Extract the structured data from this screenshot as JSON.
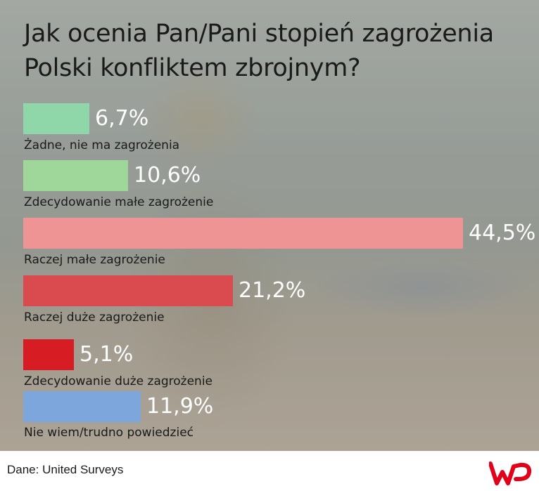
{
  "title": "Jak ocenia Pan/Pani stopień zagrożenia Polski konfliktem zbrojnym?",
  "source": "Dane: United Surveys",
  "logo": {
    "name": "wp-logo",
    "text": "WP",
    "color": "#e2001a"
  },
  "chart_data": {
    "type": "bar",
    "orientation": "horizontal",
    "title": "Jak ocenia Pan/Pani stopień zagrożenia Polski konfliktem zbrojnym?",
    "unit": "%",
    "categories": [
      "Żadne, nie ma zagrożenia",
      "Zdecydowanie małe zagrożenie",
      "Raczej małe zagrożenie",
      "Raczej duże zagrożenie",
      "Zdecydowanie duże zagrożenie",
      "Nie wiem/trudno powiedzieć"
    ],
    "values": [
      6.7,
      10.6,
      44.5,
      21.2,
      5.1,
      11.9
    ],
    "value_labels": [
      "6,7%",
      "10,6%",
      "44,5%",
      "21,2%",
      "5,1%",
      "11,9%"
    ],
    "colors": [
      "#8fd6a8",
      "#9fd79a",
      "#ee9494",
      "#d94b4f",
      "#d81c24",
      "#7da6dd"
    ],
    "xlim": [
      0,
      44.5
    ],
    "grid": false,
    "legend": "none"
  }
}
